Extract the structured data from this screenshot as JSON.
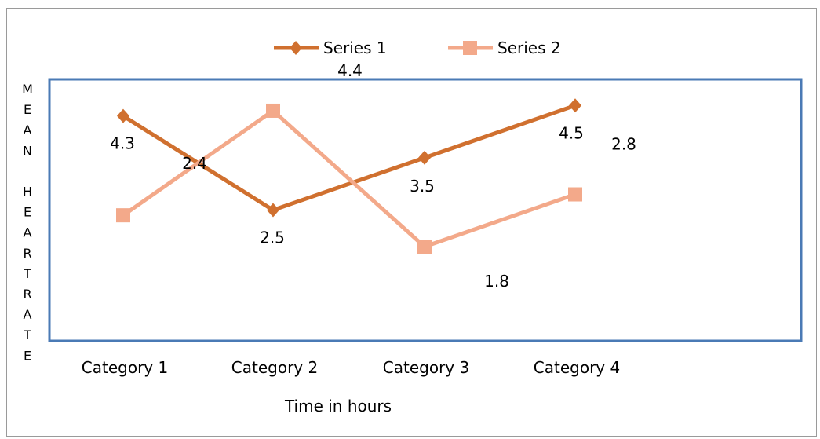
{
  "chart_data": {
    "type": "line",
    "title": "",
    "ylabel": "MEAN HEARTRATE",
    "ylabel_letters": [
      "M",
      "E",
      "A",
      "N",
      "",
      "H",
      "E",
      "A",
      "R",
      "T",
      "R",
      "A",
      "T",
      "E"
    ],
    "xlabel": "Time in hours",
    "categories": [
      "Category 1",
      "Category 2",
      "Category 3",
      "Category 4"
    ],
    "ylim": [
      0,
      5
    ],
    "grid": false,
    "legend_position": "top",
    "series": [
      {
        "name": "Series 1",
        "color": "#d0702f",
        "marker": "diamond",
        "values": [
          4.3,
          2.5,
          3.5,
          4.5
        ],
        "labels": [
          "4.3",
          "2.5",
          "3.5",
          "4.5"
        ]
      },
      {
        "name": "Series 2",
        "color": "#f3a98a",
        "marker": "square",
        "values": [
          2.4,
          4.4,
          1.8,
          2.8
        ],
        "labels": [
          "2.4",
          "4.4",
          "1.8",
          "2.8"
        ]
      }
    ]
  },
  "colors": {
    "plot_border": "#4a7ab5",
    "frame_border": "#9a9a9a"
  }
}
